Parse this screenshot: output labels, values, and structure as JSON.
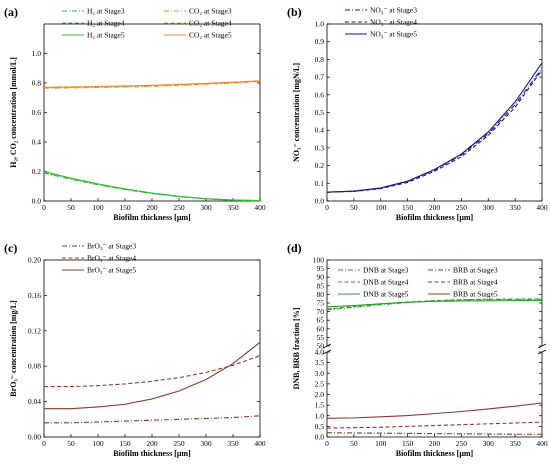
{
  "chart_data": [
    {
      "type": "line",
      "panel_label": "(a)",
      "xlabel": "Biofilm thickness [μm]",
      "ylabel": "H₂, CO₂ concentration [mmol/L]",
      "xlim": [
        0,
        400
      ],
      "ylim": [
        0,
        1.2
      ],
      "xticks": [
        "0",
        "50",
        "100",
        "150",
        "200",
        "250",
        "300",
        "350",
        "400"
      ],
      "yticks": [
        "0.0",
        "0.2",
        "0.4",
        "0.6",
        "0.8",
        "1.0"
      ],
      "ytick_values": [
        0,
        0.2,
        0.4,
        0.6,
        0.8,
        1.0
      ],
      "legend_position": "top",
      "x": [
        0,
        50,
        100,
        150,
        200,
        250,
        300,
        350,
        400
      ],
      "series": [
        {
          "name": "H₂ at Stage3",
          "color": "#2ebd2e",
          "dash": "dashdot",
          "values": [
            0.19,
            0.148,
            0.11,
            0.078,
            0.05,
            0.03,
            0.014,
            0.005,
            0.001
          ]
        },
        {
          "name": "H₂ at Stage4",
          "color": "#2ebd2e",
          "dash": "dash",
          "values": [
            0.195,
            0.152,
            0.113,
            0.08,
            0.052,
            0.031,
            0.015,
            0.006,
            0.002
          ]
        },
        {
          "name": "H₂ at Stage5",
          "color": "#2ebd2e",
          "dash": "solid",
          "values": [
            0.2,
            0.155,
            0.116,
            0.082,
            0.054,
            0.032,
            0.016,
            0.007,
            0.003
          ]
        },
        {
          "name": "CO₂ at Stage3",
          "color": "#f08c28",
          "dash": "dashdot",
          "values": [
            0.765,
            0.767,
            0.77,
            0.774,
            0.778,
            0.784,
            0.792,
            0.8,
            0.81
          ]
        },
        {
          "name": "CO₂ at Stage4",
          "color": "#f08c28",
          "dash": "dash",
          "values": [
            0.768,
            0.77,
            0.773,
            0.777,
            0.781,
            0.787,
            0.795,
            0.803,
            0.813
          ]
        },
        {
          "name": "CO₂ at Stage5",
          "color": "#f08c28",
          "dash": "solid",
          "values": [
            0.771,
            0.773,
            0.776,
            0.78,
            0.784,
            0.79,
            0.798,
            0.806,
            0.815
          ]
        }
      ]
    },
    {
      "type": "line",
      "panel_label": "(b)",
      "xlabel": "Biofilm thickness [μm]",
      "ylabel": "NO₃⁻ concentration [mgN/L]",
      "xlim": [
        0,
        400
      ],
      "ylim": [
        0,
        1.0
      ],
      "xticks": [
        "0",
        "50",
        "100",
        "150",
        "200",
        "250",
        "300",
        "350",
        "400"
      ],
      "yticks": [
        "0.0",
        "0.1",
        "0.2",
        "0.3",
        "0.4",
        "0.5",
        "0.6",
        "0.7",
        "0.8",
        "0.9",
        "1.0"
      ],
      "ytick_values": [
        0,
        0.1,
        0.2,
        0.3,
        0.4,
        0.5,
        0.6,
        0.7,
        0.8,
        0.9,
        1.0
      ],
      "legend_position": "top-left",
      "x": [
        0,
        50,
        100,
        150,
        200,
        250,
        300,
        350,
        400
      ],
      "series": [
        {
          "name": "NO₃⁻ at Stage3",
          "color": "#1a1a8c",
          "dash": "dashdot",
          "values": [
            0.05,
            0.055,
            0.072,
            0.11,
            0.175,
            0.26,
            0.38,
            0.545,
            0.75
          ]
        },
        {
          "name": "NO₃⁻ at Stage4",
          "color": "#1a1a8c",
          "dash": "dash",
          "values": [
            0.05,
            0.054,
            0.07,
            0.105,
            0.168,
            0.25,
            0.37,
            0.53,
            0.74
          ]
        },
        {
          "name": "NO₃⁻ at Stage5",
          "color": "#1a1a8c",
          "dash": "solid",
          "values": [
            0.05,
            0.056,
            0.074,
            0.112,
            0.178,
            0.265,
            0.39,
            0.56,
            0.78
          ]
        }
      ]
    },
    {
      "type": "line",
      "panel_label": "(c)",
      "xlabel": "Biofilm thickness [μm]",
      "ylabel": "BrO₃⁻ concentration [mg/L]",
      "xlim": [
        0,
        400
      ],
      "ylim": [
        0,
        0.2
      ],
      "xticks": [
        "0",
        "50",
        "100",
        "150",
        "200",
        "250",
        "300",
        "350",
        "400"
      ],
      "yticks": [
        "0.00",
        "0.04",
        "0.08",
        "0.12",
        "0.16",
        "0.20"
      ],
      "ytick_values": [
        0,
        0.04,
        0.08,
        0.12,
        0.16,
        0.2
      ],
      "legend_position": "top-left",
      "x": [
        0,
        50,
        100,
        150,
        200,
        250,
        300,
        350,
        400
      ],
      "series": [
        {
          "name": "BrO₃⁻ at Stage3",
          "color": "#8b3a2a",
          "dash": "dashdot",
          "values": [
            0.016,
            0.016,
            0.017,
            0.018,
            0.019,
            0.02,
            0.021,
            0.022,
            0.024
          ]
        },
        {
          "name": "BrO₃⁻ at Stage4",
          "color": "#8b3a2a",
          "dash": "dash",
          "values": [
            0.057,
            0.057,
            0.058,
            0.06,
            0.063,
            0.067,
            0.073,
            0.081,
            0.092
          ]
        },
        {
          "name": "BrO₃⁻ at Stage5",
          "color": "#8b3a2a",
          "dash": "solid",
          "values": [
            0.032,
            0.032,
            0.034,
            0.037,
            0.043,
            0.052,
            0.065,
            0.083,
            0.107
          ]
        }
      ]
    },
    {
      "type": "line",
      "panel_label": "(d)",
      "xlabel": "Biofilm thickness [μm]",
      "ylabel": "DNB, BRB fraction [%]",
      "xlim": [
        0,
        400
      ],
      "axis_break": true,
      "upper_ylim": [
        50,
        100
      ],
      "upper_yticks": [
        "50",
        "55",
        "60",
        "65",
        "70",
        "75",
        "80",
        "85",
        "90",
        "95",
        "100"
      ],
      "upper_ytick_values": [
        50,
        55,
        60,
        65,
        70,
        75,
        80,
        85,
        90,
        95,
        100
      ],
      "lower_ylim": [
        0,
        4
      ],
      "lower_yticks": [
        "0.0",
        "0.5",
        "1.0",
        "1.5",
        "2.0",
        "2.5",
        "3.0",
        "3.5",
        "4.0"
      ],
      "lower_ytick_values": [
        0,
        0.5,
        1.0,
        1.5,
        2.0,
        2.5,
        3.0,
        3.5,
        4.0
      ],
      "xticks": [
        "0",
        "50",
        "100",
        "150",
        "200",
        "250",
        "300",
        "350",
        "400"
      ],
      "legend_position": "top",
      "x": [
        0,
        50,
        100,
        150,
        200,
        250,
        300,
        350,
        400
      ],
      "series": [
        {
          "name": "DNB at Stage3",
          "color": "#2ea02e",
          "dash": "dashdot",
          "values": [
            71.0,
            72.5,
            74.0,
            75.3,
            76.2,
            76.8,
            77.0,
            77.1,
            77.2
          ]
        },
        {
          "name": "DNB at Stage4",
          "color": "#2ea02e",
          "dash": "dash",
          "values": [
            71.5,
            73.0,
            74.5,
            75.6,
            76.4,
            76.9,
            77.2,
            77.3,
            77.4
          ]
        },
        {
          "name": "DNB at Stage5",
          "color": "#2ea02e",
          "dash": "solid",
          "values": [
            72.8,
            73.5,
            74.5,
            75.5,
            76.0,
            76.2,
            76.3,
            76.4,
            76.5
          ]
        },
        {
          "name": "BRB at Stage3",
          "color": "#8b3a2a",
          "dash": "dashdot",
          "values": [
            0.2,
            0.19,
            0.18,
            0.17,
            0.16,
            0.15,
            0.14,
            0.13,
            0.13
          ]
        },
        {
          "name": "BRB at Stage4",
          "color": "#8b3a2a",
          "dash": "dash",
          "values": [
            0.42,
            0.44,
            0.46,
            0.5,
            0.54,
            0.58,
            0.62,
            0.66,
            0.7
          ]
        },
        {
          "name": "BRB at Stage5",
          "color": "#8b3a2a",
          "dash": "solid",
          "values": [
            0.88,
            0.9,
            0.95,
            1.01,
            1.1,
            1.2,
            1.32,
            1.45,
            1.6
          ]
        }
      ]
    }
  ]
}
